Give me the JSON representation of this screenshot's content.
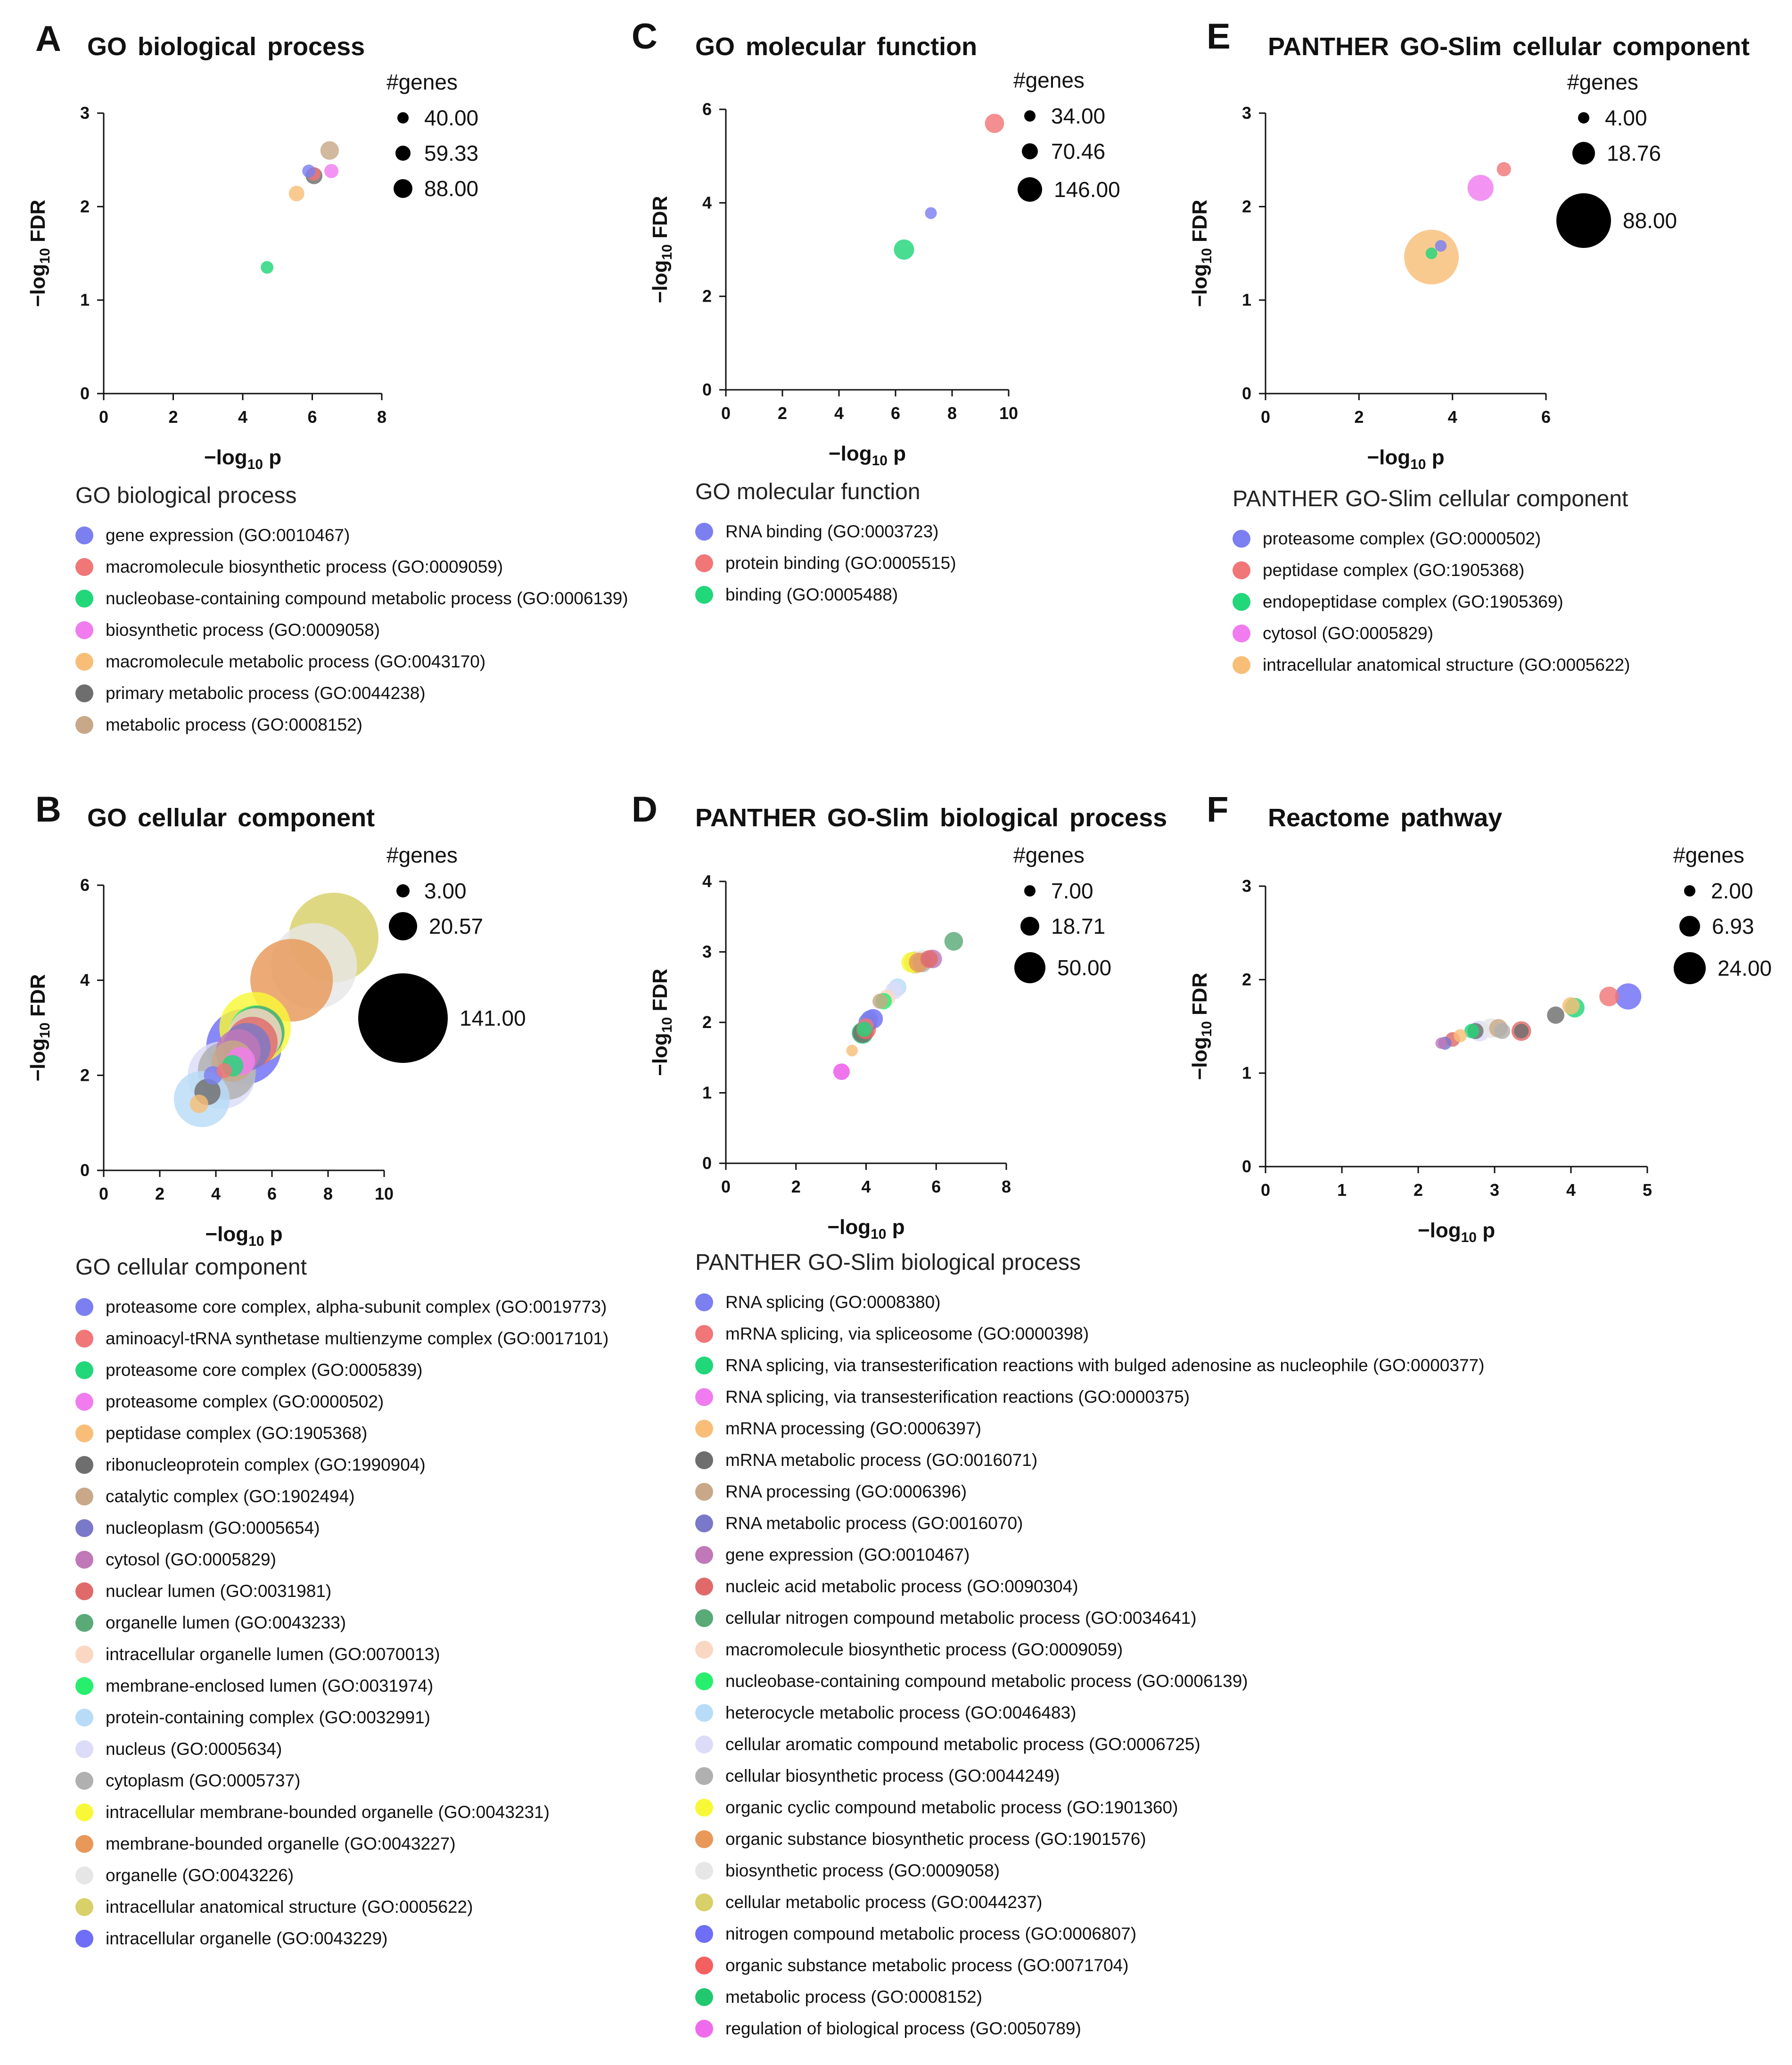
{
  "chart_data": [
    {
      "panel": "A",
      "title": "GO biological process",
      "type": "scatter",
      "xlabel": "−log₁₀ p",
      "ylabel": "−log₁₀ FDR",
      "xlim": [
        0,
        8
      ],
      "ylim": [
        0,
        3
      ],
      "xticks": [
        0,
        2,
        4,
        6,
        8
      ],
      "yticks": [
        0,
        1,
        2,
        3
      ],
      "size_legend": {
        "title": "#genes",
        "values": [
          "40.00",
          "59.33",
          "88.00"
        ]
      },
      "legend_title": "GO biological process",
      "series": [
        {
          "name": "gene expression (GO:0010467)",
          "color": "#7b7ff0",
          "x": 5.9,
          "y": 2.38,
          "genes": 42
        },
        {
          "name": "macromolecule biosynthetic process (GO:0009059)",
          "color": "#f07678",
          "x": 6.05,
          "y": 2.35,
          "genes": 45
        },
        {
          "name": "nucleobase-containing compound metabolic process (GO:0006139)",
          "color": "#22d67a",
          "x": 4.7,
          "y": 1.35,
          "genes": 40
        },
        {
          "name": "biosynthetic process (GO:0009058)",
          "color": "#f07cf0",
          "x": 6.55,
          "y": 2.38,
          "genes": 50
        },
        {
          "name": "macromolecule metabolic process (GO:0043170)",
          "color": "#f8be78",
          "x": 5.55,
          "y": 2.14,
          "genes": 60
        },
        {
          "name": "primary metabolic process (GO:0044238)",
          "color": "#6e6e6e",
          "x": 6.05,
          "y": 2.33,
          "genes": 70
        },
        {
          "name": "metabolic process (GO:0008152)",
          "color": "#c8a888",
          "x": 6.5,
          "y": 2.6,
          "genes": 85
        }
      ]
    },
    {
      "panel": "B",
      "title": "GO cellular component",
      "type": "scatter",
      "xlabel": "−log₁₀ p",
      "ylabel": "−log₁₀ FDR",
      "xlim": [
        0,
        10
      ],
      "ylim": [
        0,
        6
      ],
      "xticks": [
        0,
        2,
        4,
        6,
        8,
        10
      ],
      "yticks": [
        0,
        2,
        4,
        6
      ],
      "size_legend": {
        "title": "#genes",
        "values": [
          "3.00",
          "20.57",
          "141.00"
        ]
      },
      "legend_title": "GO cellular component",
      "series": [
        {
          "name": "proteasome core complex, alpha-subunit complex (GO:0019773)",
          "color": "#7b7ff0",
          "x": 3.9,
          "y": 2.0,
          "genes": 6
        },
        {
          "name": "aminoacyl-tRNA synthetase multienzyme complex (GO:0017101)",
          "color": "#f07678",
          "x": 4.3,
          "y": 2.1,
          "genes": 4
        },
        {
          "name": "proteasome core complex (GO:0005839)",
          "color": "#22d67a",
          "x": 4.6,
          "y": 2.2,
          "genes": 8
        },
        {
          "name": "proteasome complex (GO:0000502)",
          "color": "#f07cf0",
          "x": 4.9,
          "y": 2.3,
          "genes": 14
        },
        {
          "name": "peptidase complex (GO:1905368)",
          "color": "#f8be78",
          "x": 3.4,
          "y": 1.4,
          "genes": 6
        },
        {
          "name": "ribonucleoprotein complex (GO:1990904)",
          "color": "#6e6e6e",
          "x": 3.7,
          "y": 1.65,
          "genes": 12
        },
        {
          "name": "catalytic complex (GO:1902494)",
          "color": "#c8a888",
          "x": 4.6,
          "y": 2.3,
          "genes": 30
        },
        {
          "name": "nucleoplasm (GO:0005654)",
          "color": "#7a78c8",
          "x": 5.1,
          "y": 2.6,
          "genes": 40
        },
        {
          "name": "cytosol (GO:0005829)",
          "color": "#c078b8",
          "x": 4.8,
          "y": 2.5,
          "genes": 35
        },
        {
          "name": "nuclear lumen (GO:0031981)",
          "color": "#e06a6a",
          "x": 5.3,
          "y": 2.7,
          "genes": 45
        },
        {
          "name": "organelle lumen (GO:0043233)",
          "color": "#5aaa78",
          "x": 5.5,
          "y": 2.9,
          "genes": 50
        },
        {
          "name": "intracellular organelle lumen (GO:0070013)",
          "color": "#fad7c3",
          "x": 5.4,
          "y": 2.85,
          "genes": 50
        },
        {
          "name": "membrane-enclosed lumen (GO:0031974)",
          "color": "#28ee6e",
          "x": 5.45,
          "y": 2.9,
          "genes": 52
        },
        {
          "name": "protein-containing complex (GO:0032991)",
          "color": "#b8dcf8",
          "x": 3.5,
          "y": 1.5,
          "genes": 55
        },
        {
          "name": "nucleus (GO:0005634)",
          "color": "#dcdcf8",
          "x": 4.2,
          "y": 2.0,
          "genes": 80
        },
        {
          "name": "cytoplasm (GO:0005737)",
          "color": "#b0b0b0",
          "x": 4.4,
          "y": 2.1,
          "genes": 60
        },
        {
          "name": "intracellular membrane-bounded organelle (GO:0043231)",
          "color": "#f8f838",
          "x": 5.4,
          "y": 3.0,
          "genes": 90
        },
        {
          "name": "membrane-bounded organelle (GO:0043227)",
          "color": "#e89858",
          "x": 6.7,
          "y": 4.0,
          "genes": 120
        },
        {
          "name": "organelle (GO:0043226)",
          "color": "#e6e6e6",
          "x": 7.5,
          "y": 4.3,
          "genes": 130
        },
        {
          "name": "intracellular anatomical structure (GO:0005622)",
          "color": "#d8d068",
          "x": 8.2,
          "y": 4.9,
          "genes": 141
        },
        {
          "name": "intracellular organelle (GO:0043229)",
          "color": "#6e6ef6",
          "x": 5.0,
          "y": 2.6,
          "genes": 100
        }
      ]
    },
    {
      "panel": "C",
      "title": "GO molecular function",
      "type": "scatter",
      "xlabel": "−log₁₀ p",
      "ylabel": "−log₁₀ FDR",
      "xlim": [
        0,
        10
      ],
      "ylim": [
        0,
        6
      ],
      "xticks": [
        0,
        2,
        4,
        6,
        8,
        10
      ],
      "yticks": [
        0,
        2,
        4,
        6
      ],
      "size_legend": {
        "title": "#genes",
        "values": [
          "34.00",
          "70.46",
          "146.00"
        ]
      },
      "legend_title": "GO molecular function",
      "series": [
        {
          "name": "RNA binding (GO:0003723)",
          "color": "#7b7ff0",
          "x": 7.25,
          "y": 3.78,
          "genes": 34
        },
        {
          "name": "protein binding (GO:0005515)",
          "color": "#f07678",
          "x": 9.5,
          "y": 5.7,
          "genes": 90
        },
        {
          "name": "binding (GO:0005488)",
          "color": "#22d67a",
          "x": 6.3,
          "y": 3.0,
          "genes": 100
        }
      ]
    },
    {
      "panel": "D",
      "title": "PANTHER GO-Slim biological process",
      "type": "scatter",
      "xlabel": "−log₁₀ p",
      "ylabel": "−log₁₀ FDR",
      "xlim": [
        0,
        8
      ],
      "ylim": [
        0,
        4
      ],
      "xticks": [
        0,
        2,
        4,
        6,
        8
      ],
      "yticks": [
        0,
        1,
        2,
        3,
        4
      ],
      "size_legend": {
        "title": "#genes",
        "values": [
          "7.00",
          "18.71",
          "50.00"
        ]
      },
      "legend_title": "PANTHER GO-Slim biological process",
      "series": [
        {
          "name": "RNA splicing (GO:0008380)",
          "color": "#7b7ff0",
          "x": 4.1,
          "y": 2.05,
          "genes": 15
        },
        {
          "name": "mRNA splicing, via spliceosome (GO:0000398)",
          "color": "#f07678",
          "x": 4.0,
          "y": 1.95,
          "genes": 12
        },
        {
          "name": "RNA splicing, via transesterification reactions with bulged adenosine as nucleophile (GO:0000377)",
          "color": "#22d67a",
          "x": 3.95,
          "y": 1.9,
          "genes": 12
        },
        {
          "name": "RNA splicing, via transesterification reactions (GO:0000375)",
          "color": "#f07cf0",
          "x": 3.3,
          "y": 1.3,
          "genes": 14
        },
        {
          "name": "mRNA processing (GO:0006397)",
          "color": "#f8be78",
          "x": 3.6,
          "y": 1.6,
          "genes": 7
        },
        {
          "name": "mRNA metabolic process (GO:0016071)",
          "color": "#6e6e6e",
          "x": 3.9,
          "y": 1.85,
          "genes": 20
        },
        {
          "name": "RNA processing (GO:0006396)",
          "color": "#c8a888",
          "x": 4.4,
          "y": 2.3,
          "genes": 12
        },
        {
          "name": "RNA metabolic process (GO:0016070)",
          "color": "#7a78c8",
          "x": 4.05,
          "y": 2.0,
          "genes": 18
        },
        {
          "name": "gene expression (GO:0010467)",
          "color": "#c078b8",
          "x": 5.9,
          "y": 2.9,
          "genes": 18
        },
        {
          "name": "nucleic acid metabolic process (GO:0090304)",
          "color": "#e06a6a",
          "x": 5.8,
          "y": 2.9,
          "genes": 16
        },
        {
          "name": "cellular nitrogen compound metabolic process (GO:0034641)",
          "color": "#5aaa78",
          "x": 6.5,
          "y": 3.15,
          "genes": 18
        },
        {
          "name": "macromolecule biosynthetic process (GO:0009059)",
          "color": "#fad7c3",
          "x": 4.6,
          "y": 2.35,
          "genes": 14
        },
        {
          "name": "nucleobase-containing compound metabolic process (GO:0006139)",
          "color": "#28ee6e",
          "x": 4.5,
          "y": 2.3,
          "genes": 14
        },
        {
          "name": "heterocycle metabolic process (GO:0046483)",
          "color": "#b8dcf8",
          "x": 4.9,
          "y": 2.5,
          "genes": 16
        },
        {
          "name": "cellular aromatic compound metabolic process (GO:0006725)",
          "color": "#dcdcf8",
          "x": 4.8,
          "y": 2.45,
          "genes": 16
        },
        {
          "name": "cellular biosynthetic process (GO:0044249)",
          "color": "#b0b0b0",
          "x": 5.6,
          "y": 2.85,
          "genes": 20
        },
        {
          "name": "organic cyclic compound metabolic process (GO:1901360)",
          "color": "#f8f838",
          "x": 5.3,
          "y": 2.85,
          "genes": 22
        },
        {
          "name": "organic substance biosynthetic process (GO:1901576)",
          "color": "#e89858",
          "x": 5.5,
          "y": 2.85,
          "genes": 20
        },
        {
          "name": "biosynthetic process (GO:0009058)",
          "color": "#e6e6e6",
          "x": 5.6,
          "y": 2.88,
          "genes": 22
        },
        {
          "name": "cellular metabolic process (GO:0044237)",
          "color": "#d8d068",
          "x": 5.4,
          "y": 2.85,
          "genes": 25
        },
        {
          "name": "nitrogen compound metabolic process (GO:0006807)",
          "color": "#6e6ef6",
          "x": 4.2,
          "y": 2.05,
          "genes": 20
        },
        {
          "name": "organic substance metabolic process (GO:0071704)",
          "color": "#f46060",
          "x": 4.0,
          "y": 1.9,
          "genes": 20
        },
        {
          "name": "metabolic process (GO:0008152)",
          "color": "#22c870",
          "x": 3.9,
          "y": 1.85,
          "genes": 24
        },
        {
          "name": "regulation of biological process (GO:0050789)",
          "color": "#ee6cec",
          "x": 3.3,
          "y": 1.3,
          "genes": 14
        }
      ]
    },
    {
      "panel": "E",
      "title": "PANTHER GO-Slim cellular component",
      "type": "scatter",
      "xlabel": "−log₁₀ p",
      "ylabel": "−log₁₀ FDR",
      "xlim": [
        0,
        6
      ],
      "ylim": [
        0,
        3
      ],
      "xticks": [
        0,
        2,
        4,
        6
      ],
      "yticks": [
        0,
        1,
        2,
        3
      ],
      "size_legend": {
        "title": "#genes",
        "values": [
          "4.00",
          "18.76",
          "88.00"
        ]
      },
      "legend_title": "PANTHER GO-Slim cellular component",
      "series": [
        {
          "name": "proteasome complex (GO:0000502)",
          "color": "#7b7ff0",
          "x": 3.75,
          "y": 1.58,
          "genes": 4
        },
        {
          "name": "peptidase complex (GO:1905368)",
          "color": "#f07678",
          "x": 5.1,
          "y": 2.4,
          "genes": 6
        },
        {
          "name": "endopeptidase complex (GO:1905369)",
          "color": "#22d67a",
          "x": 3.55,
          "y": 1.5,
          "genes": 4
        },
        {
          "name": "cytosol (GO:0005829)",
          "color": "#f07cf0",
          "x": 4.6,
          "y": 2.2,
          "genes": 20
        },
        {
          "name": "intracellular anatomical structure (GO:0005622)",
          "color": "#f8be78",
          "x": 3.55,
          "y": 1.46,
          "genes": 88
        }
      ]
    },
    {
      "panel": "F",
      "title": "Reactome pathway",
      "type": "scatter",
      "xlabel": "−log₁₀ p",
      "ylabel": "−log₁₀ FDR",
      "xlim": [
        0,
        5
      ],
      "ylim": [
        0,
        3
      ],
      "xticks": [
        0,
        1,
        2,
        3,
        4,
        5
      ],
      "yticks": [
        0,
        1,
        2,
        3
      ],
      "size_legend": {
        "title": "#genes",
        "values": [
          "2.00",
          "6.93",
          "24.00"
        ]
      },
      "series": [
        {
          "color": "#c078b8",
          "x": 2.3,
          "y": 1.32,
          "genes": 3
        },
        {
          "color": "#7a78c8",
          "x": 2.35,
          "y": 1.32,
          "genes": 4
        },
        {
          "color": "#e06a6a",
          "x": 2.45,
          "y": 1.36,
          "genes": 5
        },
        {
          "color": "#f8be78",
          "x": 2.55,
          "y": 1.4,
          "genes": 4
        },
        {
          "color": "#22d67a",
          "x": 2.7,
          "y": 1.45,
          "genes": 5
        },
        {
          "color": "#6e6e6e",
          "x": 2.75,
          "y": 1.45,
          "genes": 6
        },
        {
          "color": "#dcdcf8",
          "x": 2.8,
          "y": 1.45,
          "genes": 10
        },
        {
          "color": "#e6e6e6",
          "x": 2.95,
          "y": 1.48,
          "genes": 9
        },
        {
          "color": "#c8a888",
          "x": 3.05,
          "y": 1.48,
          "genes": 8
        },
        {
          "color": "#b0b0b0",
          "x": 3.1,
          "y": 1.45,
          "genes": 6
        },
        {
          "color": "#e06a6a",
          "x": 3.35,
          "y": 1.45,
          "genes": 9
        },
        {
          "color": "#6e6e6e",
          "x": 3.35,
          "y": 1.45,
          "genes": 5
        },
        {
          "color": "#6e6e6e",
          "x": 3.8,
          "y": 1.62,
          "genes": 7
        },
        {
          "color": "#22d67a",
          "x": 4.05,
          "y": 1.7,
          "genes": 9
        },
        {
          "color": "#f8be78",
          "x": 4.0,
          "y": 1.72,
          "genes": 7
        },
        {
          "color": "#f07678",
          "x": 4.5,
          "y": 1.82,
          "genes": 9
        },
        {
          "color": "#6e6ef6",
          "x": 4.75,
          "y": 1.82,
          "genes": 16
        }
      ]
    }
  ]
}
